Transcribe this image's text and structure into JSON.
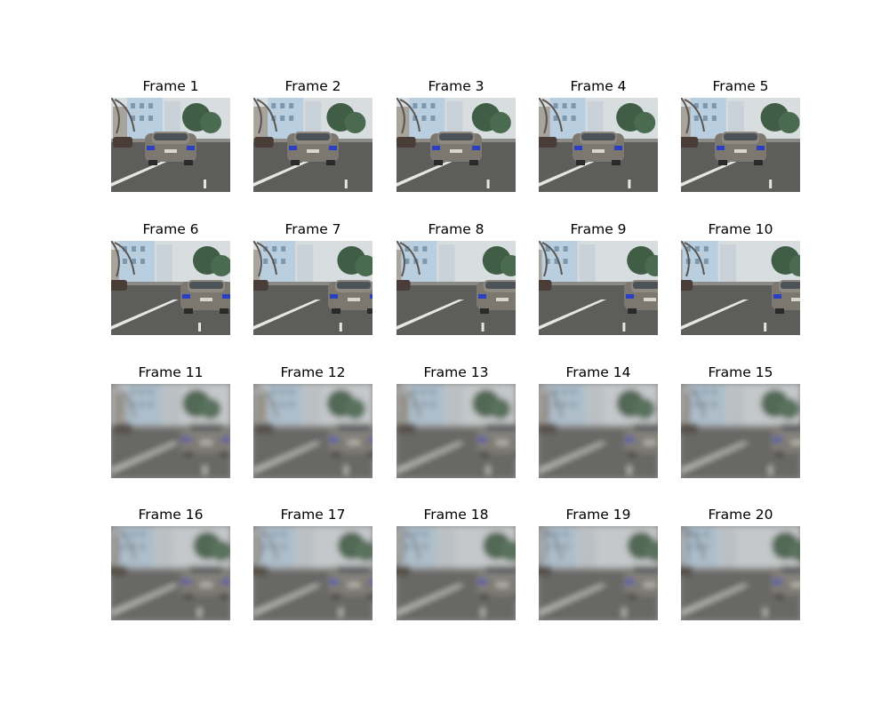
{
  "figure": {
    "frames": [
      {
        "title": "Frame 1",
        "blur": 0
      },
      {
        "title": "Frame 2",
        "blur": 0
      },
      {
        "title": "Frame 3",
        "blur": 0
      },
      {
        "title": "Frame 4",
        "blur": 0
      },
      {
        "title": "Frame 5",
        "blur": 0
      },
      {
        "title": "Frame 6",
        "blur": 0
      },
      {
        "title": "Frame 7",
        "blur": 0
      },
      {
        "title": "Frame 8",
        "blur": 0
      },
      {
        "title": "Frame 9",
        "blur": 0
      },
      {
        "title": "Frame 10",
        "blur": 0
      },
      {
        "title": "Frame 11",
        "blur": 1
      },
      {
        "title": "Frame 12",
        "blur": 1
      },
      {
        "title": "Frame 13",
        "blur": 1
      },
      {
        "title": "Frame 14",
        "blur": 1
      },
      {
        "title": "Frame 15",
        "blur": 1
      },
      {
        "title": "Frame 16",
        "blur": 1
      },
      {
        "title": "Frame 17",
        "blur": 1
      },
      {
        "title": "Frame 18",
        "blur": 1
      },
      {
        "title": "Frame 19",
        "blur": 1
      },
      {
        "title": "Frame 20",
        "blur": 1
      }
    ]
  }
}
